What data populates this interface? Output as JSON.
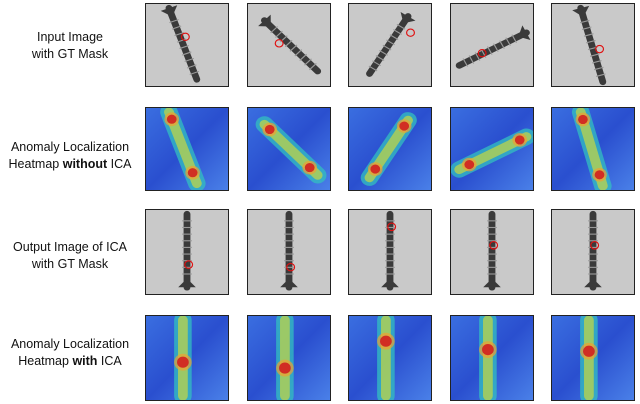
{
  "rows": [
    {
      "label_line1": "Input Image",
      "label_line2_pre": "with GT Mask",
      "label_line2_bold": "",
      "label_line2_post": ""
    },
    {
      "label_line1": "Anomaly Localization",
      "label_line2_pre": "Heatmap ",
      "label_line2_bold": "without",
      "label_line2_post": " ICA"
    },
    {
      "label_line1": "Output Image of ICA",
      "label_line2_pre": "with GT Mask",
      "label_line2_bold": "",
      "label_line2_post": ""
    },
    {
      "label_line1": "Anomaly Localization",
      "label_line2_pre": "Heatmap ",
      "label_line2_bold": "with",
      "label_line2_post": " ICA"
    }
  ],
  "columns": 5,
  "colors": {
    "screw_dark": "#3a3a3a",
    "screw_light": "#9a9a9a",
    "background_gray": "#c9c9c9",
    "mask_red": "#e01010",
    "heat_blue": "#2a50d0",
    "heat_red": "#d02020"
  }
}
